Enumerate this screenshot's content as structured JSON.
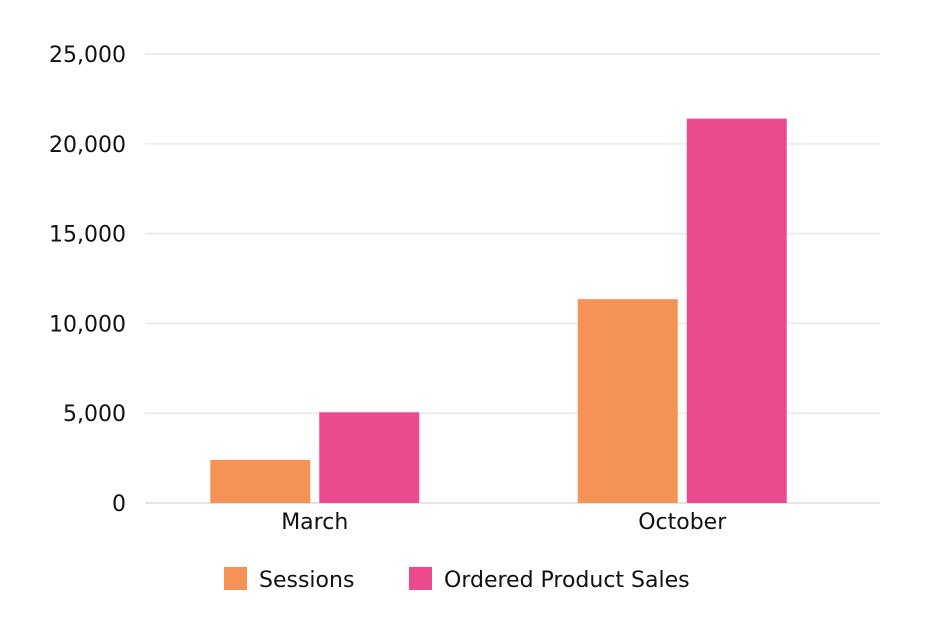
{
  "chart_data": {
    "type": "bar",
    "title": "",
    "xlabel": "",
    "ylabel": "",
    "categories": [
      "March",
      "October"
    ],
    "series": [
      {
        "name": "Sessions",
        "color": "#F59356",
        "values": [
          2400,
          11350
        ]
      },
      {
        "name": "Ordered Product Sales",
        "color": "#EC4A8E",
        "values": [
          5050,
          21400
        ]
      }
    ],
    "ylim": [
      0,
      25000
    ],
    "yticks": [
      0,
      5000,
      10000,
      15000,
      20000,
      25000
    ],
    "ytick_labels": [
      "0",
      "5,000",
      "10,000",
      "15,000",
      "20,000",
      "25,000"
    ],
    "grid": true,
    "legend_position": "bottom"
  }
}
